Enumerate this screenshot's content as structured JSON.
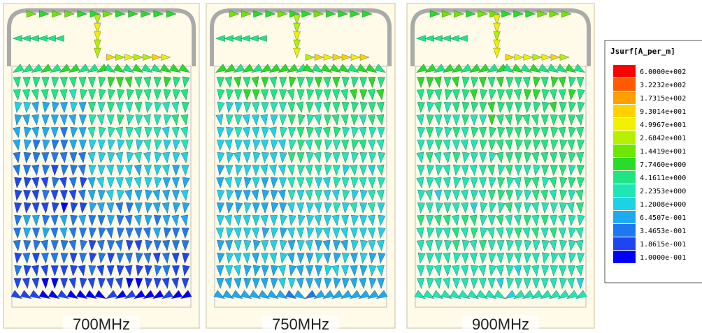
{
  "panels": [
    {
      "caption": "700MHz"
    },
    {
      "caption": "750MHz"
    },
    {
      "caption": "900MHz"
    }
  ],
  "legend": {
    "title": "Jsurf[A_per_m]",
    "entries": [
      {
        "label": "6.0000e+002",
        "color": "#ff0000"
      },
      {
        "label": "3.2232e+002",
        "color": "#ff5a00"
      },
      {
        "label": "1.7315e+002",
        "color": "#ffa000"
      },
      {
        "label": "9.3014e+001",
        "color": "#ffd200"
      },
      {
        "label": "4.9967e+001",
        "color": "#f0f000"
      },
      {
        "label": "2.6842e+001",
        "color": "#b4f000"
      },
      {
        "label": "1.4419e+001",
        "color": "#6ee600"
      },
      {
        "label": "7.7460e+000",
        "color": "#28dc28"
      },
      {
        "label": "4.1611e+000",
        "color": "#1ee682"
      },
      {
        "label": "2.2353e+000",
        "color": "#1ee6b4"
      },
      {
        "label": "1.2008e+000",
        "color": "#1ed2e6"
      },
      {
        "label": "6.4507e-001",
        "color": "#1eaaf0"
      },
      {
        "label": "3.4653e-001",
        "color": "#1e78f0"
      },
      {
        "label": "1.8615e-001",
        "color": "#1e46f0"
      },
      {
        "label": "1.0000e-001",
        "color": "#0000ff"
      }
    ]
  }
}
